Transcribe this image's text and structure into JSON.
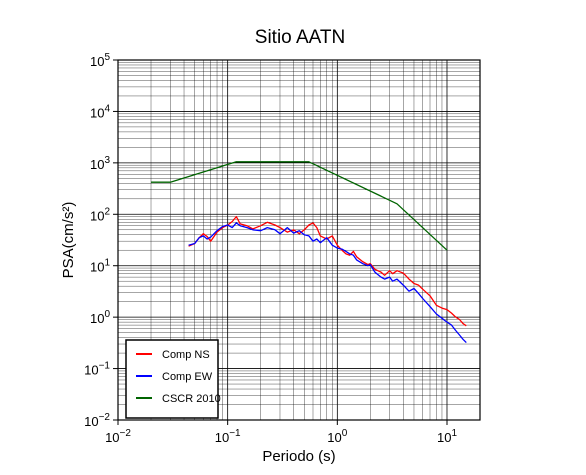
{
  "chart_data": {
    "type": "line",
    "title": "Sitio AATN",
    "xlabel": "Periodo (s)",
    "ylabel": "PSA(cm/s²)",
    "x_scale": "log",
    "y_scale": "log",
    "xlim": [
      0.01,
      20
    ],
    "ylim": [
      0.01,
      100000
    ],
    "x_ticks": [
      {
        "value": 0.01,
        "base": "10",
        "exp": "−2"
      },
      {
        "value": 0.1,
        "base": "10",
        "exp": "−1"
      },
      {
        "value": 1,
        "base": "10",
        "exp": "0"
      },
      {
        "value": 10,
        "base": "10",
        "exp": "1"
      }
    ],
    "y_ticks": [
      {
        "value": 0.01,
        "base": "10",
        "exp": "−2"
      },
      {
        "value": 0.1,
        "base": "10",
        "exp": "−1"
      },
      {
        "value": 1,
        "base": "10",
        "exp": "0"
      },
      {
        "value": 10,
        "base": "10",
        "exp": "1"
      },
      {
        "value": 100,
        "base": "10",
        "exp": "2"
      },
      {
        "value": 1000,
        "base": "10",
        "exp": "3"
      },
      {
        "value": 10000,
        "base": "10",
        "exp": "4"
      },
      {
        "value": 100000,
        "base": "10",
        "exp": "5"
      }
    ],
    "grid": true,
    "legend_position": "bottom-left",
    "series": [
      {
        "name": "Comp NS",
        "color": "#ff0000",
        "points": [
          [
            0.044,
            24
          ],
          [
            0.05,
            27
          ],
          [
            0.055,
            35
          ],
          [
            0.06,
            42
          ],
          [
            0.065,
            37
          ],
          [
            0.07,
            30
          ],
          [
            0.08,
            45
          ],
          [
            0.09,
            55
          ],
          [
            0.1,
            62
          ],
          [
            0.11,
            72
          ],
          [
            0.12,
            90
          ],
          [
            0.13,
            65
          ],
          [
            0.15,
            60
          ],
          [
            0.17,
            52
          ],
          [
            0.2,
            60
          ],
          [
            0.23,
            70
          ],
          [
            0.27,
            62
          ],
          [
            0.3,
            55
          ],
          [
            0.35,
            45
          ],
          [
            0.4,
            50
          ],
          [
            0.45,
            42
          ],
          [
            0.5,
            50
          ],
          [
            0.55,
            62
          ],
          [
            0.6,
            68
          ],
          [
            0.65,
            55
          ],
          [
            0.7,
            38
          ],
          [
            0.8,
            33
          ],
          [
            0.9,
            38
          ],
          [
            1.0,
            25
          ],
          [
            1.1,
            20
          ],
          [
            1.2,
            17
          ],
          [
            1.3,
            16
          ],
          [
            1.4,
            19
          ],
          [
            1.5,
            15
          ],
          [
            1.7,
            12
          ],
          [
            1.9,
            10.5
          ],
          [
            2.0,
            11
          ],
          [
            2.2,
            8.5
          ],
          [
            2.5,
            7.5
          ],
          [
            2.7,
            6.5
          ],
          [
            3.0,
            8
          ],
          [
            3.2,
            7
          ],
          [
            3.5,
            8
          ],
          [
            4.0,
            7.2
          ],
          [
            4.5,
            5.5
          ],
          [
            5.0,
            4.5
          ],
          [
            5.5,
            4.2
          ],
          [
            6.0,
            3.5
          ],
          [
            7.0,
            2.6
          ],
          [
            8.0,
            1.7
          ],
          [
            9.0,
            1.5
          ],
          [
            10.0,
            1.4
          ],
          [
            11.0,
            1.2
          ],
          [
            12.0,
            1.0
          ],
          [
            13.0,
            0.9
          ],
          [
            14.0,
            0.75
          ],
          [
            15.0,
            0.68
          ]
        ]
      },
      {
        "name": "Comp EW",
        "color": "#0000ff",
        "points": [
          [
            0.044,
            25
          ],
          [
            0.05,
            27
          ],
          [
            0.055,
            35
          ],
          [
            0.06,
            38
          ],
          [
            0.065,
            33
          ],
          [
            0.07,
            36
          ],
          [
            0.08,
            48
          ],
          [
            0.09,
            58
          ],
          [
            0.1,
            62
          ],
          [
            0.11,
            55
          ],
          [
            0.12,
            68
          ],
          [
            0.13,
            60
          ],
          [
            0.15,
            55
          ],
          [
            0.17,
            50
          ],
          [
            0.2,
            48
          ],
          [
            0.23,
            55
          ],
          [
            0.27,
            50
          ],
          [
            0.3,
            42
          ],
          [
            0.35,
            55
          ],
          [
            0.4,
            43
          ],
          [
            0.45,
            48
          ],
          [
            0.5,
            40
          ],
          [
            0.55,
            38
          ],
          [
            0.6,
            30
          ],
          [
            0.65,
            33
          ],
          [
            0.7,
            28
          ],
          [
            0.8,
            35
          ],
          [
            0.9,
            25
          ],
          [
            1.0,
            22
          ],
          [
            1.1,
            21
          ],
          [
            1.2,
            19
          ],
          [
            1.3,
            17
          ],
          [
            1.4,
            16
          ],
          [
            1.5,
            13
          ],
          [
            1.7,
            11
          ],
          [
            1.9,
            10
          ],
          [
            2.0,
            10.5
          ],
          [
            2.2,
            7.5
          ],
          [
            2.5,
            6
          ],
          [
            2.7,
            5.5
          ],
          [
            3.0,
            6
          ],
          [
            3.2,
            5
          ],
          [
            3.5,
            5.5
          ],
          [
            4.0,
            4.2
          ],
          [
            4.5,
            3.2
          ],
          [
            5.0,
            3.6
          ],
          [
            5.5,
            2.9
          ],
          [
            6.0,
            2.3
          ],
          [
            7.0,
            1.6
          ],
          [
            8.0,
            1.15
          ],
          [
            9.0,
            0.95
          ],
          [
            10.0,
            0.8
          ],
          [
            11.0,
            0.7
          ],
          [
            12.0,
            0.55
          ],
          [
            13.0,
            0.45
          ],
          [
            14.0,
            0.37
          ],
          [
            15.0,
            0.32
          ]
        ]
      },
      {
        "name": "CSCR 2010",
        "color": "#006400",
        "points": [
          [
            0.02,
            420
          ],
          [
            0.03,
            420
          ],
          [
            0.12,
            1050
          ],
          [
            0.55,
            1050
          ],
          [
            3.5,
            160
          ],
          [
            10.0,
            20
          ]
        ]
      }
    ]
  }
}
